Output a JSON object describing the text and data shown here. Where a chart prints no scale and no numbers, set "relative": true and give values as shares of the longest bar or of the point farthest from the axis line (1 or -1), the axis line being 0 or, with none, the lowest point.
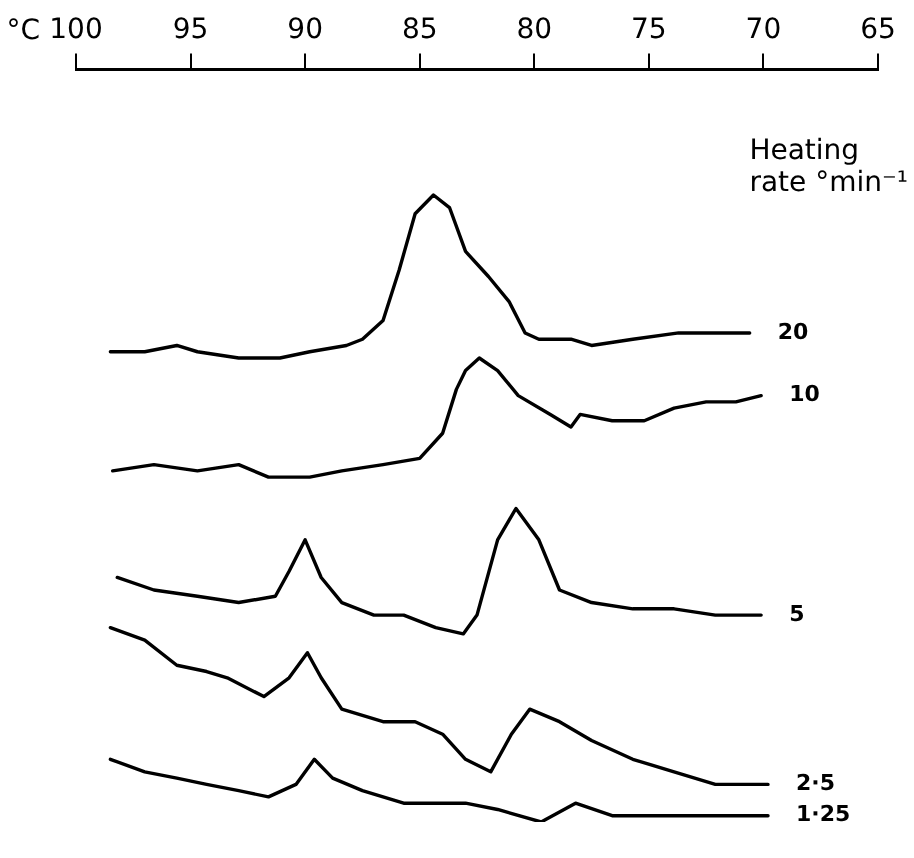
{
  "chart_data": {
    "type": "line",
    "relative": true,
    "xlabel": "°C",
    "legend_title": "Heating rate °min⁻¹",
    "xlim": [
      100,
      65
    ],
    "xticks": [
      100,
      95,
      90,
      85,
      80,
      75,
      70,
      65
    ],
    "grid": false,
    "legend": false,
    "marker": "none",
    "line_style": "solid",
    "series": [
      {
        "name": "20",
        "color": "#000000",
        "x": [
          98.5,
          97.0,
          95.6,
          94.7,
          92.9,
          91.1,
          89.8,
          88.2,
          87.5,
          86.6,
          85.9,
          85.2,
          84.4,
          83.7,
          83.0,
          82.0,
          81.1,
          80.4,
          79.8,
          78.4,
          77.5,
          75.7,
          73.7,
          72.1,
          70.6
        ],
        "values": [
          0.75,
          0.75,
          0.76,
          0.75,
          0.74,
          0.74,
          0.75,
          0.76,
          0.77,
          0.8,
          0.88,
          0.97,
          1,
          0.98,
          0.91,
          0.87,
          0.83,
          0.78,
          0.77,
          0.77,
          0.76,
          0.77,
          0.78,
          0.78,
          0.78
        ]
      },
      {
        "name": "10",
        "color": "#000000",
        "x": [
          98.4,
          96.6,
          94.7,
          92.9,
          91.6,
          89.8,
          88.4,
          86.6,
          85.0,
          84.0,
          83.4,
          83.0,
          82.4,
          81.6,
          80.7,
          79.3,
          78.4,
          78.0,
          76.6,
          75.2,
          73.9,
          72.5,
          71.2,
          70.1
        ],
        "values": [
          0.56,
          0.57,
          0.56,
          0.57,
          0.55,
          0.55,
          0.56,
          0.57,
          0.58,
          0.62,
          0.69,
          0.72,
          0.74,
          0.72,
          0.68,
          0.65,
          0.63,
          0.65,
          0.64,
          0.64,
          0.66,
          0.67,
          0.67,
          0.68
        ]
      },
      {
        "name": "5",
        "color": "#000000",
        "x": [
          98.2,
          96.6,
          94.7,
          92.9,
          91.3,
          90.7,
          90.0,
          89.3,
          88.4,
          87.0,
          85.7,
          84.3,
          83.1,
          82.5,
          81.6,
          80.8,
          79.8,
          78.9,
          77.5,
          75.7,
          73.9,
          72.1,
          70.1
        ],
        "values": [
          0.39,
          0.37,
          0.36,
          0.35,
          0.36,
          0.4,
          0.45,
          0.39,
          0.35,
          0.33,
          0.33,
          0.31,
          0.3,
          0.33,
          0.45,
          0.5,
          0.45,
          0.37,
          0.35,
          0.34,
          0.34,
          0.33,
          0.33
        ]
      },
      {
        "name": "2·5",
        "color": "#000000",
        "x": [
          98.5,
          97.0,
          95.6,
          94.3,
          93.4,
          91.8,
          90.7,
          89.9,
          89.3,
          88.4,
          86.6,
          85.2,
          84.0,
          83.0,
          81.9,
          81.0,
          80.2,
          78.9,
          77.5,
          75.7,
          73.9,
          72.1,
          69.8
        ],
        "values": [
          0.31,
          0.29,
          0.25,
          0.24,
          0.23,
          0.2,
          0.23,
          0.27,
          0.23,
          0.18,
          0.16,
          0.16,
          0.14,
          0.1,
          0.08,
          0.14,
          0.18,
          0.16,
          0.13,
          0.1,
          0.08,
          0.06,
          0.06
        ]
      },
      {
        "name": "1·25",
        "color": "#000000",
        "x": [
          98.5,
          97.0,
          95.6,
          94.3,
          92.9,
          91.6,
          90.4,
          89.6,
          88.8,
          87.5,
          85.7,
          83.0,
          81.6,
          79.7,
          78.2,
          76.6,
          74.8,
          73.0,
          69.8
        ],
        "values": [
          0.1,
          0.08,
          0.07,
          0.06,
          0.05,
          0.04,
          0.06,
          0.1,
          0.07,
          0.05,
          0.03,
          0.03,
          0.02,
          0,
          0.03,
          0.01,
          0.01,
          0.01,
          0.01
        ]
      }
    ]
  }
}
